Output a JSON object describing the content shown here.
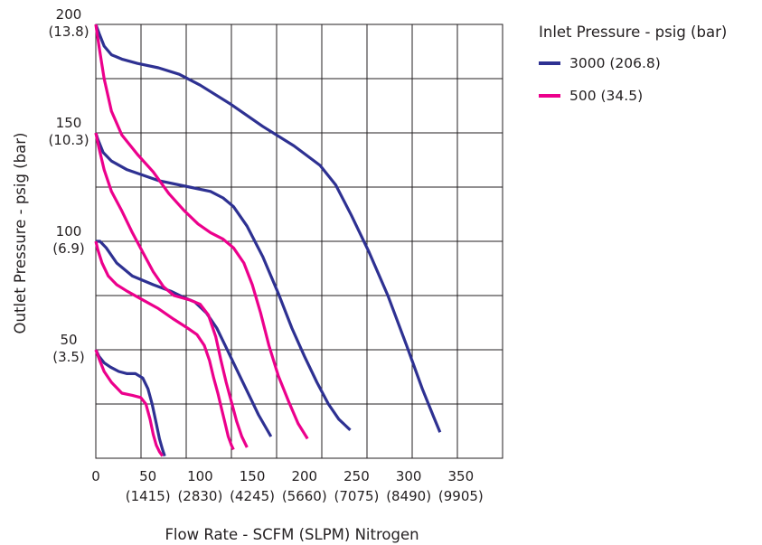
{
  "chart_data": {
    "type": "line",
    "title": "",
    "xlabel": "Flow Rate - SCFM (SLPM) Nitrogen",
    "ylabel": "Outlet Pressure - psig (bar)",
    "xlim": [
      0,
      390
    ],
    "ylim": [
      0,
      200
    ],
    "grid": true,
    "legend_position": "top-right",
    "legend_title": "Inlet Pressure - psig (bar)",
    "x_ticks": [
      {
        "value": 0,
        "label": "0",
        "sub": ""
      },
      {
        "value": 50,
        "label": "50",
        "sub": "(1415)"
      },
      {
        "value": 100,
        "label": "100",
        "sub": "(2830)"
      },
      {
        "value": 150,
        "label": "150",
        "sub": "(4245)"
      },
      {
        "value": 200,
        "label": "200",
        "sub": "(5660)"
      },
      {
        "value": 250,
        "label": "250",
        "sub": "(7075)"
      },
      {
        "value": 300,
        "label": "300",
        "sub": "(8490)"
      },
      {
        "value": 350,
        "label": "350",
        "sub": "(9905)"
      }
    ],
    "y_ticks": [
      {
        "value": 50,
        "label": "50",
        "sub": "(3.5)"
      },
      {
        "value": 100,
        "label": "100",
        "sub": "(6.9)"
      },
      {
        "value": 150,
        "label": "150",
        "sub": "(10.3)"
      },
      {
        "value": 200,
        "label": "200",
        "sub": "(13.8)"
      }
    ],
    "series": [
      {
        "name": "3000 (206.8)",
        "color": "#2e3192",
        "curves": [
          {
            "setpoint": 200,
            "points": [
              [
                0,
                200
              ],
              [
                3,
                196
              ],
              [
                8,
                190
              ],
              [
                15,
                186
              ],
              [
                25,
                184
              ],
              [
                40,
                182
              ],
              [
                60,
                180
              ],
              [
                80,
                177
              ],
              [
                100,
                172
              ],
              [
                130,
                163
              ],
              [
                160,
                153
              ],
              [
                190,
                144
              ],
              [
                215,
                135
              ],
              [
                230,
                126
              ],
              [
                245,
                112
              ],
              [
                262,
                95
              ],
              [
                280,
                75
              ],
              [
                298,
                52
              ],
              [
                313,
                32
              ],
              [
                324,
                19
              ],
              [
                330,
                12
              ]
            ]
          },
          {
            "setpoint": 150,
            "points": [
              [
                0,
                150
              ],
              [
                2,
                147
              ],
              [
                7,
                141
              ],
              [
                15,
                137
              ],
              [
                30,
                133
              ],
              [
                60,
                128
              ],
              [
                90,
                125
              ],
              [
                110,
                123
              ],
              [
                122,
                120
              ],
              [
                132,
                116
              ],
              [
                145,
                107
              ],
              [
                160,
                93
              ],
              [
                175,
                76
              ],
              [
                188,
                60
              ],
              [
                200,
                47
              ],
              [
                212,
                35
              ],
              [
                223,
                25
              ],
              [
                233,
                18
              ],
              [
                244,
                13
              ]
            ]
          },
          {
            "setpoint": 100,
            "points": [
              [
                0,
                100
              ],
              [
                4,
                100
              ],
              [
                10,
                97
              ],
              [
                20,
                90
              ],
              [
                35,
                84
              ],
              [
                55,
                80
              ],
              [
                72,
                77
              ],
              [
                85,
                74
              ],
              [
                95,
                72
              ],
              [
                106,
                67
              ],
              [
                116,
                60
              ],
              [
                124,
                52
              ],
              [
                132,
                44
              ],
              [
                140,
                36
              ],
              [
                148,
                28
              ],
              [
                156,
                20
              ],
              [
                162,
                15
              ],
              [
                168,
                10
              ]
            ]
          },
          {
            "setpoint": 50,
            "points": [
              [
                0,
                50
              ],
              [
                3,
                47
              ],
              [
                8,
                44
              ],
              [
                14,
                42
              ],
              [
                22,
                40
              ],
              [
                30,
                39
              ],
              [
                38,
                39
              ],
              [
                45,
                37
              ],
              [
                50,
                32
              ],
              [
                54,
                25
              ],
              [
                58,
                16
              ],
              [
                61,
                9
              ],
              [
                64,
                4
              ],
              [
                66,
                1
              ]
            ]
          }
        ]
      },
      {
        "name": "500 (34.5)",
        "color": "#ec008c",
        "curves": [
          {
            "setpoint": 200,
            "points": [
              [
                0,
                200
              ],
              [
                3,
                190
              ],
              [
                8,
                175
              ],
              [
                15,
                160
              ],
              [
                25,
                149
              ],
              [
                40,
                140
              ],
              [
                55,
                132
              ],
              [
                70,
                122
              ],
              [
                85,
                114
              ],
              [
                98,
                108
              ],
              [
                110,
                104
              ],
              [
                122,
                101
              ],
              [
                132,
                97
              ],
              [
                142,
                90
              ],
              [
                150,
                80
              ],
              [
                158,
                67
              ],
              [
                166,
                52
              ],
              [
                175,
                38
              ],
              [
                185,
                26
              ],
              [
                194,
                16
              ],
              [
                203,
                9
              ]
            ]
          },
          {
            "setpoint": 150,
            "points": [
              [
                0,
                150
              ],
              [
                3,
                143
              ],
              [
                8,
                133
              ],
              [
                15,
                123
              ],
              [
                25,
                114
              ],
              [
                35,
                104
              ],
              [
                45,
                95
              ],
              [
                55,
                86
              ],
              [
                65,
                79
              ],
              [
                75,
                75
              ],
              [
                90,
                73
              ],
              [
                100,
                71
              ],
              [
                108,
                66
              ],
              [
                115,
                56
              ],
              [
                120,
                45
              ],
              [
                125,
                35
              ],
              [
                130,
                26
              ],
              [
                135,
                17
              ],
              [
                140,
                10
              ],
              [
                145,
                5
              ]
            ]
          },
          {
            "setpoint": 100,
            "points": [
              [
                0,
                100
              ],
              [
                2,
                96
              ],
              [
                6,
                90
              ],
              [
                12,
                84
              ],
              [
                20,
                80
              ],
              [
                30,
                77
              ],
              [
                45,
                73
              ],
              [
                60,
                69
              ],
              [
                75,
                64
              ],
              [
                88,
                60
              ],
              [
                97,
                57
              ],
              [
                104,
                52
              ],
              [
                109,
                45
              ],
              [
                113,
                37
              ],
              [
                117,
                30
              ],
              [
                121,
                22
              ],
              [
                124,
                16
              ],
              [
                127,
                10
              ],
              [
                130,
                6
              ],
              [
                132,
                4
              ]
            ]
          },
          {
            "setpoint": 50,
            "points": [
              [
                0,
                50
              ],
              [
                3,
                46
              ],
              [
                8,
                40
              ],
              [
                15,
                35
              ],
              [
                25,
                30
              ],
              [
                35,
                29
              ],
              [
                43,
                28
              ],
              [
                48,
                25
              ],
              [
                52,
                18
              ],
              [
                55,
                11
              ],
              [
                58,
                6
              ],
              [
                61,
                3
              ],
              [
                64,
                1
              ]
            ]
          }
        ]
      }
    ]
  }
}
